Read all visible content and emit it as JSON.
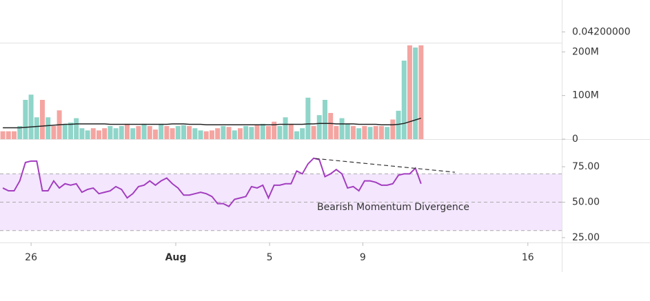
{
  "chart_data": [
    {
      "type": "price",
      "ylim": [
        0.0387,
        0.0517
      ],
      "yticks": [
        {
          "value": 0.042,
          "label": "0.04200000"
        }
      ]
    },
    {
      "type": "bar",
      "x": [
        0,
        1,
        2,
        3,
        4,
        5,
        6,
        7,
        8,
        9,
        10,
        11,
        12,
        13,
        14,
        15,
        16,
        17,
        18,
        19,
        20,
        21,
        22,
        23,
        24,
        25,
        26,
        27,
        28,
        29,
        30,
        31,
        32,
        33,
        34,
        35,
        36,
        37,
        38,
        39,
        40,
        41,
        42,
        43,
        44,
        45,
        46,
        47,
        48,
        49,
        50,
        51,
        52,
        53,
        54,
        55,
        56,
        57,
        58,
        59,
        60,
        61,
        62,
        63,
        64,
        65,
        66,
        67,
        68,
        69,
        70,
        71,
        72,
        73,
        74
      ],
      "values": [
        18000000,
        18000000,
        18000000,
        30000000,
        90000000,
        102000000,
        50000000,
        90000000,
        50000000,
        30000000,
        66000000,
        35000000,
        38000000,
        48000000,
        25000000,
        20000000,
        25000000,
        20000000,
        25000000,
        30000000,
        25000000,
        30000000,
        35000000,
        25000000,
        30000000,
        35000000,
        30000000,
        22000000,
        35000000,
        30000000,
        25000000,
        30000000,
        32000000,
        30000000,
        25000000,
        20000000,
        18000000,
        20000000,
        25000000,
        30000000,
        28000000,
        20000000,
        25000000,
        30000000,
        28000000,
        32000000,
        35000000,
        30000000,
        40000000,
        30000000,
        50000000,
        35000000,
        18000000,
        25000000,
        95000000,
        30000000,
        55000000,
        90000000,
        60000000,
        30000000,
        48000000,
        35000000,
        30000000,
        25000000,
        30000000,
        28000000,
        30000000,
        30000000,
        28000000,
        45000000,
        65000000,
        180000000,
        215000000,
        210000000,
        215000000
      ],
      "colors": [
        "#f4a5a1",
        "#f4a5a1",
        "#f4a5a1",
        "#8fd5c9",
        "#8fd5c9",
        "#8fd5c9",
        "#8fd5c9",
        "#f4a5a1",
        "#8fd5c9",
        "#f4a5a1",
        "#f4a5a1",
        "#8fd5c9",
        "#8fd5c9",
        "#8fd5c9",
        "#8fd5c9",
        "#8fd5c9",
        "#f4a5a1",
        "#f4a5a1",
        "#f4a5a1",
        "#8fd5c9",
        "#8fd5c9",
        "#8fd5c9",
        "#f4a5a1",
        "#8fd5c9",
        "#f4a5a1",
        "#8fd5c9",
        "#f4a5a1",
        "#f4a5a1",
        "#8fd5c9",
        "#f4a5a1",
        "#f4a5a1",
        "#8fd5c9",
        "#8fd5c9",
        "#f4a5a1",
        "#8fd5c9",
        "#8fd5c9",
        "#f4a5a1",
        "#f4a5a1",
        "#f4a5a1",
        "#8fd5c9",
        "#f4a5a1",
        "#8fd5c9",
        "#f4a5a1",
        "#8fd5c9",
        "#8fd5c9",
        "#f4a5a1",
        "#8fd5c9",
        "#f4a5a1",
        "#f4a5a1",
        "#8fd5c9",
        "#8fd5c9",
        "#f4a5a1",
        "#8fd5c9",
        "#8fd5c9",
        "#8fd5c9",
        "#f4a5a1",
        "#8fd5c9",
        "#8fd5c9",
        "#f4a5a1",
        "#f4a5a1",
        "#8fd5c9",
        "#8fd5c9",
        "#f4a5a1",
        "#8fd5c9",
        "#f4a5a1",
        "#8fd5c9",
        "#f4a5a1",
        "#f4a5a1",
        "#8fd5c9",
        "#f4a5a1",
        "#8fd5c9",
        "#8fd5c9",
        "#f4a5a1",
        "#8fd5c9",
        "#f4a5a1"
      ],
      "ma": {
        "color": "#222222",
        "values": [
          26000000,
          26000000,
          26000000,
          26000000,
          27000000,
          28000000,
          29000000,
          30000000,
          31000000,
          32000000,
          33000000,
          34000000,
          34000000,
          35000000,
          35000000,
          35000000,
          35000000,
          35000000,
          35000000,
          34000000,
          34000000,
          34000000,
          34000000,
          34000000,
          34000000,
          34000000,
          34000000,
          34000000,
          34000000,
          34000000,
          35000000,
          35000000,
          35000000,
          34000000,
          34000000,
          34000000,
          33000000,
          33000000,
          33000000,
          33000000,
          33000000,
          33000000,
          33000000,
          33000000,
          33000000,
          33000000,
          33000000,
          33000000,
          33000000,
          34000000,
          34000000,
          34000000,
          34000000,
          34000000,
          35000000,
          35000000,
          36000000,
          36000000,
          36000000,
          35000000,
          35000000,
          35000000,
          35000000,
          34000000,
          34000000,
          34000000,
          34000000,
          33000000,
          33000000,
          33000000,
          34000000,
          36000000,
          40000000,
          44000000,
          48000000
        ]
      },
      "xlim": [
        -0.5,
        98.9
      ],
      "ylim": [
        0,
        221000000
      ],
      "yticks": [
        0,
        {
          "value": 100000000,
          "label": "100M"
        },
        {
          "value": 200000000,
          "label": "200M"
        }
      ]
    },
    {
      "type": "line",
      "x": [
        0,
        1,
        2,
        3,
        4,
        5,
        6,
        7,
        8,
        9,
        10,
        11,
        12,
        13,
        14,
        15,
        16,
        17,
        18,
        19,
        20,
        21,
        22,
        23,
        24,
        25,
        26,
        27,
        28,
        29,
        30,
        31,
        32,
        33,
        34,
        35,
        36,
        37,
        38,
        39,
        40,
        41,
        42,
        43,
        44,
        45,
        46,
        47,
        48,
        49,
        50,
        51,
        52,
        53,
        54,
        55,
        56,
        57,
        58,
        59,
        60,
        61,
        62,
        63,
        64,
        65,
        66,
        67,
        68,
        69,
        70,
        71,
        72,
        73,
        74
      ],
      "values": [
        60,
        58,
        58,
        65,
        78,
        79,
        79,
        58,
        58,
        65,
        60,
        63,
        62,
        63,
        57,
        59,
        60,
        56,
        57,
        58,
        61,
        59,
        53,
        56,
        61,
        62,
        65,
        62,
        65,
        67,
        63,
        60,
        55,
        55,
        56,
        57,
        56,
        54,
        49,
        49,
        47,
        52,
        53,
        54,
        61,
        60,
        62,
        53,
        62,
        62,
        63,
        63,
        72,
        70,
        77,
        81,
        80,
        68,
        70,
        73,
        70,
        60,
        61,
        58,
        65,
        65,
        64,
        62,
        62,
        63,
        69,
        70,
        70,
        74,
        63
      ],
      "color": "#a33dbf",
      "band": [
        30,
        70
      ],
      "band_color": "#f3e6fd",
      "midline": 50,
      "trend_line": {
        "x": [
          55.3,
          80
        ],
        "y": [
          80.8,
          71.1
        ]
      },
      "annotation": "Bearish Momentum Divergence",
      "xlim": [
        -0.5,
        98.9
      ],
      "ylim": [
        21.6,
        93
      ],
      "yticks": [
        {
          "value": 25,
          "label": "25.00"
        },
        {
          "value": 50,
          "label": "50.00"
        },
        {
          "value": 75,
          "label": "75.00"
        }
      ],
      "xticks": [
        {
          "value": 5,
          "label": "26"
        },
        {
          "value": 30.6,
          "label": "Aug"
        },
        {
          "value": 47.2,
          "label": "5"
        },
        {
          "value": 63.7,
          "label": "9"
        },
        {
          "value": 92.9,
          "label": "16"
        }
      ]
    }
  ]
}
